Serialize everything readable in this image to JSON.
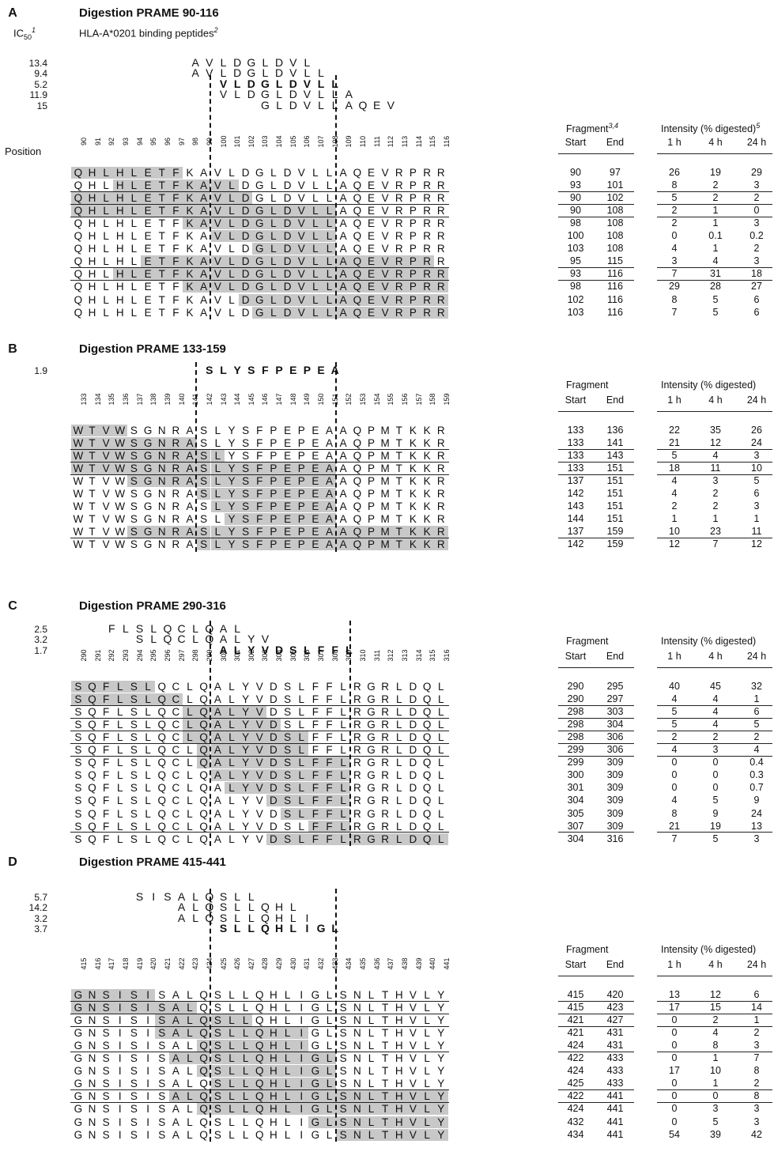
{
  "ic50_header": "IC",
  "ic50_sub": "50",
  "ic50_sup": "1",
  "binding_header": "HLA-A*0201 binding peptides",
  "binding_sup": "2",
  "position_label": "Position",
  "fragment_label": "Fragment",
  "fragment_sup": "3,4",
  "intensity_label": "Intensity (% digested)",
  "intensity_sup": "5",
  "start_label": "Start",
  "end_label": "End",
  "time_labels": [
    "1 h",
    "4 h",
    "24 h"
  ],
  "panels": [
    {
      "id": "A",
      "title": "Digestion PRAME 90-116",
      "start": 90,
      "seq": "QHLHLETFKAVLDGLDVLLAQEVRPRR",
      "dash": [
        100,
        109
      ],
      "peptides": [
        {
          "ic": "13.4",
          "start": 100,
          "seq": "AVLDGLDVL",
          "shift": -2,
          "bold": false
        },
        {
          "ic": "9.4",
          "start": 100,
          "seq": "AVLDGLDVLL",
          "shift": -2,
          "bold": false
        },
        {
          "ic": "5.2",
          "start": 100,
          "seq": "VLDGLDVLL",
          "shift": 0,
          "bold": true
        },
        {
          "ic": "11.9",
          "start": 100,
          "seq": "VLDGLDVLLA",
          "shift": 0,
          "bold": false
        },
        {
          "ic": "15",
          "start": 103,
          "seq": "GLDVLLAQEV",
          "shift": 0,
          "bold": false
        }
      ],
      "rows": [
        {
          "s": 90,
          "e": 97,
          "i": [
            "26",
            "19",
            "29"
          ],
          "ul": false
        },
        {
          "s": 93,
          "e": 101,
          "i": [
            "8",
            "2",
            "3"
          ],
          "ul": true
        },
        {
          "s": 90,
          "e": 102,
          "i": [
            "5",
            "2",
            "2"
          ],
          "ul": true
        },
        {
          "s": 90,
          "e": 108,
          "i": [
            "2",
            "1",
            "0"
          ],
          "ul": true
        },
        {
          "s": 98,
          "e": 108,
          "i": [
            "2",
            "1",
            "3"
          ],
          "ul": false
        },
        {
          "s": 100,
          "e": 108,
          "i": [
            "0",
            "0.1",
            "0.2"
          ],
          "ul": false
        },
        {
          "s": 103,
          "e": 108,
          "i": [
            "4",
            "1",
            "2"
          ],
          "ul": false
        },
        {
          "s": 95,
          "e": 115,
          "i": [
            "3",
            "4",
            "3"
          ],
          "ul": true
        },
        {
          "s": 93,
          "e": 116,
          "i": [
            "7",
            "31",
            "18"
          ],
          "ul": true
        },
        {
          "s": 98,
          "e": 116,
          "i": [
            "29",
            "28",
            "27"
          ],
          "ul": false
        },
        {
          "s": 102,
          "e": 116,
          "i": [
            "8",
            "5",
            "6"
          ],
          "ul": false
        },
        {
          "s": 103,
          "e": 116,
          "i": [
            "7",
            "5",
            "6"
          ],
          "ul": false
        }
      ]
    },
    {
      "id": "B",
      "title": "Digestion PRAME 133-159",
      "start": 133,
      "seq": "WTVWSGNRASLYSFPEPEAAQPMTKKR",
      "dash": [
        142,
        152
      ],
      "peptides": [
        {
          "ic": "1.9",
          "start": 142,
          "seq": "SLYSFPEPEA",
          "shift": 0,
          "bold": true
        }
      ],
      "rows": [
        {
          "s": 133,
          "e": 136,
          "i": [
            "22",
            "35",
            "26"
          ],
          "ul": false
        },
        {
          "s": 133,
          "e": 141,
          "i": [
            "21",
            "12",
            "24"
          ],
          "ul": true
        },
        {
          "s": 133,
          "e": 143,
          "i": [
            "5",
            "4",
            "3"
          ],
          "ul": true
        },
        {
          "s": 133,
          "e": 151,
          "i": [
            "18",
            "11",
            "10"
          ],
          "ul": true
        },
        {
          "s": 137,
          "e": 151,
          "i": [
            "4",
            "3",
            "5"
          ],
          "ul": false
        },
        {
          "s": 142,
          "e": 151,
          "i": [
            "4",
            "2",
            "6"
          ],
          "ul": false
        },
        {
          "s": 143,
          "e": 151,
          "i": [
            "2",
            "2",
            "3"
          ],
          "ul": false
        },
        {
          "s": 144,
          "e": 151,
          "i": [
            "1",
            "1",
            "1"
          ],
          "ul": false
        },
        {
          "s": 137,
          "e": 159,
          "i": [
            "10",
            "23",
            "11"
          ],
          "ul": true
        },
        {
          "s": 142,
          "e": 159,
          "i": [
            "12",
            "7",
            "12"
          ],
          "ul": false
        }
      ]
    },
    {
      "id": "C",
      "title": "Digestion PRAME 290-316",
      "start": 290,
      "seq": "SQFLSLQCLQALYVDSLFFLRGRLDQL",
      "dash": [
        300,
        310
      ],
      "peptides": [
        {
          "ic": "2.5",
          "start": 292,
          "seq": "FLSLQCLQAL",
          "shift": 0,
          "bold": false
        },
        {
          "ic": "3.2",
          "start": 294,
          "seq": "SLQCLQALYV",
          "shift": 0,
          "bold": false
        },
        {
          "ic": "1.7",
          "start": 300,
          "seq": "ALYVDSLFFL",
          "shift": 0,
          "bold": true
        }
      ],
      "rows": [
        {
          "s": 290,
          "e": 295,
          "i": [
            "40",
            "45",
            "32"
          ],
          "ul": false
        },
        {
          "s": 290,
          "e": 297,
          "i": [
            "4",
            "4",
            "1"
          ],
          "ul": true
        },
        {
          "s": 298,
          "e": 303,
          "i": [
            "5",
            "4",
            "6"
          ],
          "ul": true
        },
        {
          "s": 298,
          "e": 304,
          "i": [
            "5",
            "4",
            "5"
          ],
          "ul": true
        },
        {
          "s": 298,
          "e": 306,
          "i": [
            "2",
            "2",
            "2"
          ],
          "ul": true
        },
        {
          "s": 299,
          "e": 306,
          "i": [
            "4",
            "3",
            "4"
          ],
          "ul": true
        },
        {
          "s": 299,
          "e": 309,
          "i": [
            "0",
            "0",
            "0.4"
          ],
          "ul": false
        },
        {
          "s": 300,
          "e": 309,
          "i": [
            "0",
            "0",
            "0.3"
          ],
          "ul": false
        },
        {
          "s": 301,
          "e": 309,
          "i": [
            "0",
            "0",
            "0.7"
          ],
          "ul": false
        },
        {
          "s": 304,
          "e": 309,
          "i": [
            "4",
            "5",
            "9"
          ],
          "ul": false
        },
        {
          "s": 305,
          "e": 309,
          "i": [
            "8",
            "9",
            "24"
          ],
          "ul": false
        },
        {
          "s": 307,
          "e": 309,
          "i": [
            "21",
            "19",
            "13"
          ],
          "ul": true
        },
        {
          "s": 304,
          "e": 316,
          "i": [
            "7",
            "5",
            "3"
          ],
          "ul": false
        }
      ]
    },
    {
      "id": "D",
      "title": "Digestion PRAME 415-441",
      "start": 415,
      "seq": "GNSISISALQSLLQHLIGLSNLTHVLY",
      "dash": [
        425,
        434
      ],
      "peptides": [
        {
          "ic": "5.7",
          "start": 419,
          "seq": "SISALQSLL",
          "shift": 0,
          "bold": false
        },
        {
          "ic": "14.2",
          "start": 422,
          "seq": "ALQSLLQHL",
          "shift": 0,
          "bold": false
        },
        {
          "ic": "3.2",
          "start": 422,
          "seq": "ALQSLLQHLI",
          "shift": 0,
          "bold": false
        },
        {
          "ic": "3.7",
          "start": 425,
          "seq": "SLLQHLIGL",
          "shift": 0,
          "bold": true
        }
      ],
      "rows": [
        {
          "s": 415,
          "e": 420,
          "i": [
            "13",
            "12",
            "6"
          ],
          "ul": true
        },
        {
          "s": 415,
          "e": 423,
          "i": [
            "17",
            "15",
            "14"
          ],
          "ul": true
        },
        {
          "s": 421,
          "e": 427,
          "i": [
            "0",
            "2",
            "1"
          ],
          "ul": true
        },
        {
          "s": 421,
          "e": 431,
          "i": [
            "0",
            "4",
            "2"
          ],
          "ul": false
        },
        {
          "s": 424,
          "e": 431,
          "i": [
            "0",
            "8",
            "3"
          ],
          "ul": true
        },
        {
          "s": 422,
          "e": 433,
          "i": [
            "0",
            "1",
            "7"
          ],
          "ul": false
        },
        {
          "s": 424,
          "e": 433,
          "i": [
            "17",
            "10",
            "8"
          ],
          "ul": false
        },
        {
          "s": 425,
          "e": 433,
          "i": [
            "0",
            "1",
            "2"
          ],
          "ul": true
        },
        {
          "s": 422,
          "e": 441,
          "i": [
            "0",
            "0",
            "8"
          ],
          "ul": true
        },
        {
          "s": 424,
          "e": 441,
          "i": [
            "0",
            "3",
            "3"
          ],
          "ul": false
        },
        {
          "s": 432,
          "e": 441,
          "i": [
            "0",
            "5",
            "3"
          ],
          "ul": false
        },
        {
          "s": 434,
          "e": 441,
          "i": [
            "54",
            "39",
            "42"
          ],
          "ul": false
        }
      ]
    }
  ]
}
